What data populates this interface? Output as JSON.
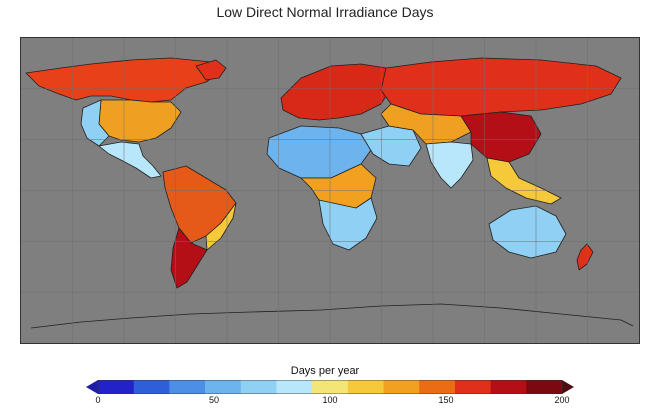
{
  "title": "Low Direct Normal Irradiance Days",
  "map": {
    "background_color": "#7f7f7f",
    "coastline_color": "#202020",
    "grid_color": "#6e6e6e"
  },
  "colorbar": {
    "label": "Days per year",
    "min": 0,
    "max": 200,
    "extend": "both",
    "ticks": [
      {
        "value": 0,
        "label": "0"
      },
      {
        "value": 50,
        "label": "50"
      },
      {
        "value": 100,
        "label": "100"
      },
      {
        "value": 150,
        "label": "150"
      },
      {
        "value": 200,
        "label": "200"
      }
    ],
    "under_color": "#1e1ea8",
    "over_color": "#4a0d12",
    "colors": [
      "#2222c8",
      "#2e5ed8",
      "#4d8fe6",
      "#6db4ee",
      "#8fd0f4",
      "#b8e6fa",
      "#f4e676",
      "#f5c93a",
      "#f2a020",
      "#ea6d16",
      "#e0301a",
      "#b40f16",
      "#7a0a10"
    ]
  },
  "regions": [
    {
      "name": "canada",
      "color": "#e84018"
    },
    {
      "name": "usa",
      "color": "#f0a020"
    },
    {
      "name": "usa-west",
      "color": "#8fd0f4"
    },
    {
      "name": "mexico",
      "color": "#b8e6fa"
    },
    {
      "name": "south-america",
      "color": "#e55a18"
    },
    {
      "name": "south-america-east",
      "color": "#f5c93a"
    },
    {
      "name": "patagonia",
      "color": "#b40f16"
    },
    {
      "name": "greenland-edge",
      "color": "#e0301a"
    },
    {
      "name": "europe",
      "color": "#d82818"
    },
    {
      "name": "sahara",
      "color": "#6db4ee"
    },
    {
      "name": "central-africa",
      "color": "#f2a020"
    },
    {
      "name": "south-africa",
      "color": "#8fd0f4"
    },
    {
      "name": "middle-east",
      "color": "#8fd0f4"
    },
    {
      "name": "siberia",
      "color": "#e0301a"
    },
    {
      "name": "central-asia",
      "color": "#f0a020"
    },
    {
      "name": "china",
      "color": "#b40f16"
    },
    {
      "name": "india",
      "color": "#b8e6fa"
    },
    {
      "name": "southeast-asia",
      "color": "#f5c93a"
    },
    {
      "name": "australia",
      "color": "#8fd0f4"
    },
    {
      "name": "new-zealand",
      "color": "#e0301a"
    }
  ]
}
